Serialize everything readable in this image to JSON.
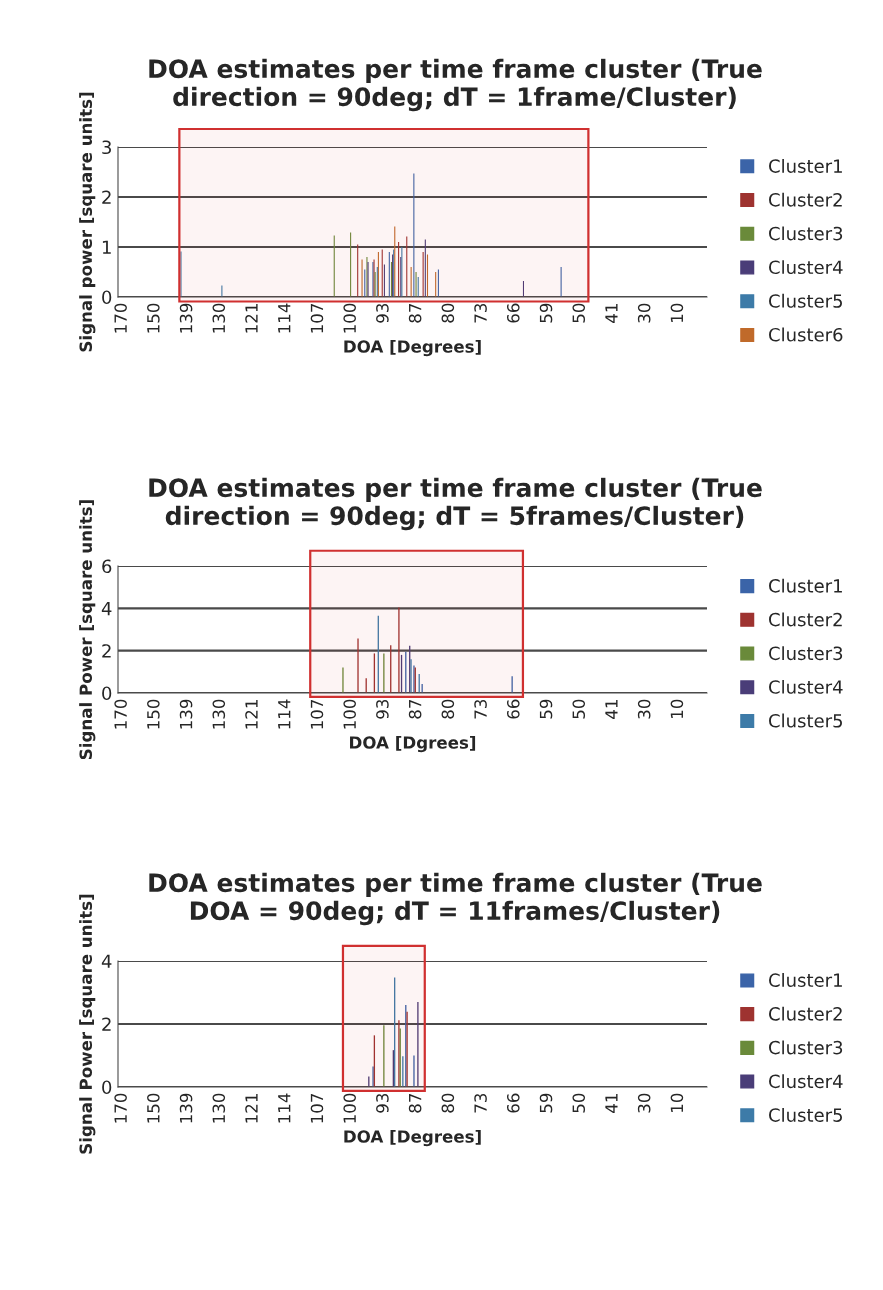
{
  "chart_data": [
    {
      "type": "bar",
      "title": "DOA estimates per time frame cluster (True direction = 90deg; dT = 1frame/Cluster)",
      "xlabel": "DOA [Degrees]",
      "ylabel": "Signal power [square units]",
      "categories": [
        "170",
        null,
        null,
        null,
        "150",
        null,
        null,
        null,
        "139",
        null,
        null,
        null,
        "130",
        null,
        null,
        null,
        "121",
        null,
        null,
        null,
        "114",
        null,
        null,
        null,
        "107",
        null,
        null,
        null,
        "100",
        null,
        null,
        null,
        "93",
        null,
        null,
        null,
        "87",
        null,
        null,
        null,
        "80",
        null,
        null,
        null,
        "73",
        null,
        null,
        null,
        "66",
        null,
        null,
        null,
        "59",
        null,
        null,
        null,
        "50",
        null,
        null,
        null,
        "41",
        null,
        null,
        null,
        "30",
        null,
        null,
        null,
        "10",
        null,
        null,
        null
      ],
      "ylim": [
        0,
        3
      ],
      "yticks": [
        0,
        1,
        2,
        3
      ],
      "grid": "y",
      "legend": "right",
      "bands": [
        {
          "axis": "x",
          "from": "139",
          "to": "50",
          "color": "#d03030"
        }
      ],
      "series": [
        {
          "name": "Cluster1",
          "color": "#3b64a8",
          "values": [
            null,
            null,
            null,
            null,
            null,
            null,
            null,
            null,
            null,
            null,
            null,
            null,
            null,
            null,
            null,
            null,
            null,
            null,
            null,
            null,
            null,
            null,
            null,
            null,
            null,
            null,
            null,
            null,
            null,
            null,
            0.55,
            0.7,
            null,
            0.9,
            null,
            null,
            2.47,
            null,
            null,
            0.55,
            null,
            null,
            null,
            null,
            null,
            null,
            null,
            null,
            null,
            null,
            null,
            null,
            null,
            null,
            0.6,
            null,
            null,
            null,
            null,
            null,
            null,
            null,
            null,
            null,
            null,
            null,
            null,
            null,
            null,
            null,
            null,
            null
          ]
        },
        {
          "name": "Cluster2",
          "color": "#9e3330",
          "values": [
            null,
            null,
            null,
            null,
            null,
            null,
            null,
            null,
            null,
            null,
            null,
            null,
            null,
            null,
            null,
            null,
            null,
            null,
            null,
            null,
            null,
            null,
            null,
            null,
            null,
            null,
            null,
            null,
            null,
            1.05,
            null,
            0.75,
            0.95,
            null,
            1.1,
            1.21,
            null,
            0.9,
            null,
            null,
            null,
            null,
            null,
            null,
            null,
            null,
            null,
            null,
            null,
            null,
            null,
            null,
            null,
            null,
            null,
            null,
            null,
            null,
            null,
            null,
            null,
            null,
            null,
            null,
            null,
            null,
            null,
            null,
            null,
            null,
            null,
            null
          ]
        },
        {
          "name": "Cluster3",
          "color": "#6a8a3a",
          "values": [
            null,
            null,
            null,
            null,
            null,
            null,
            null,
            null,
            null,
            null,
            null,
            null,
            null,
            null,
            null,
            null,
            null,
            null,
            null,
            null,
            null,
            null,
            null,
            null,
            null,
            null,
            1.23,
            null,
            1.29,
            null,
            0.8,
            0.5,
            null,
            0.7,
            null,
            null,
            0.5,
            null,
            null,
            null,
            null,
            null,
            null,
            null,
            null,
            null,
            null,
            null,
            null,
            null,
            null,
            null,
            null,
            null,
            null,
            null,
            null,
            null,
            null,
            null,
            null,
            null,
            null,
            null,
            null,
            null,
            null,
            null,
            null,
            null,
            null,
            null
          ]
        },
        {
          "name": "Cluster4",
          "color": "#4a3d78",
          "values": [
            null,
            null,
            null,
            null,
            null,
            null,
            null,
            null,
            null,
            null,
            null,
            null,
            null,
            null,
            null,
            null,
            null,
            null,
            null,
            null,
            null,
            null,
            null,
            null,
            null,
            null,
            null,
            null,
            null,
            null,
            0.7,
            null,
            0.65,
            0.85,
            0.8,
            null,
            null,
            1.15,
            null,
            null,
            null,
            null,
            null,
            null,
            null,
            null,
            null,
            null,
            null,
            0.32,
            null,
            null,
            null,
            null,
            null,
            null,
            null,
            null,
            null,
            null,
            null,
            null,
            null,
            null,
            null,
            null,
            null,
            null,
            null,
            null,
            null,
            null
          ]
        },
        {
          "name": "Cluster5",
          "color": "#3d7ba8",
          "values": [
            null,
            null,
            null,
            null,
            null,
            null,
            null,
            0.91,
            null,
            null,
            null,
            null,
            0.23,
            null,
            null,
            null,
            null,
            null,
            null,
            null,
            null,
            null,
            null,
            null,
            null,
            null,
            null,
            null,
            null,
            null,
            null,
            0.6,
            null,
            0.95,
            1.0,
            null,
            0.4,
            null,
            null,
            null,
            null,
            null,
            null,
            null,
            null,
            null,
            null,
            null,
            null,
            null,
            null,
            null,
            null,
            null,
            null,
            null,
            null,
            null,
            null,
            null,
            null,
            null,
            null,
            null,
            null,
            null,
            null,
            null,
            null,
            null,
            null,
            null
          ]
        },
        {
          "name": "Cluster6",
          "color": "#c06a2a",
          "values": [
            null,
            null,
            null,
            null,
            null,
            null,
            null,
            null,
            null,
            null,
            null,
            null,
            null,
            null,
            null,
            null,
            null,
            null,
            null,
            null,
            null,
            null,
            null,
            null,
            null,
            null,
            null,
            null,
            null,
            0.75,
            null,
            0.9,
            null,
            1.41,
            null,
            0.6,
            null,
            0.85,
            0.5,
            null,
            null,
            null,
            null,
            null,
            null,
            null,
            null,
            null,
            null,
            null,
            null,
            null,
            null,
            null,
            null,
            null,
            null,
            null,
            null,
            null,
            null,
            null,
            null,
            null,
            null,
            null,
            null,
            null,
            null,
            null,
            null,
            null
          ]
        }
      ]
    },
    {
      "type": "bar",
      "title": "DOA estimates per time frame cluster (True direction = 90deg; dT = 5frames/Cluster)",
      "xlabel": "DOA [Dgrees]",
      "ylabel": "Signal Power [square units]",
      "categories": [
        "170",
        null,
        null,
        null,
        "150",
        null,
        null,
        null,
        "139",
        null,
        null,
        null,
        "130",
        null,
        null,
        null,
        "121",
        null,
        null,
        null,
        "114",
        null,
        null,
        null,
        "107",
        null,
        null,
        null,
        "100",
        null,
        null,
        null,
        "93",
        null,
        null,
        null,
        "87",
        null,
        null,
        null,
        "80",
        null,
        null,
        null,
        "73",
        null,
        null,
        null,
        "66",
        null,
        null,
        null,
        "59",
        null,
        null,
        null,
        "50",
        null,
        null,
        null,
        "41",
        null,
        null,
        null,
        "30",
        null,
        null,
        null,
        "10",
        null,
        null,
        null
      ],
      "ylim": [
        0,
        6
      ],
      "yticks": [
        0,
        2,
        4,
        6
      ],
      "grid": "y",
      "legend": "right",
      "bands": [
        {
          "axis": "x",
          "from": "107",
          "to": "66",
          "color": "#d03030"
        }
      ],
      "series": [
        {
          "name": "Cluster1",
          "color": "#3b64a8",
          "values": [
            null,
            null,
            null,
            null,
            null,
            null,
            null,
            null,
            null,
            null,
            null,
            null,
            null,
            null,
            null,
            null,
            null,
            null,
            null,
            null,
            null,
            null,
            null,
            null,
            null,
            null,
            null,
            null,
            null,
            null,
            null,
            null,
            null,
            null,
            null,
            1.95,
            1.3,
            0.42,
            null,
            null,
            null,
            null,
            null,
            null,
            null,
            null,
            null,
            null,
            0.79,
            null,
            null,
            null,
            null,
            null,
            null,
            null,
            null,
            null,
            null,
            null,
            null,
            null,
            null,
            null,
            null,
            null,
            null,
            null,
            null,
            null,
            null,
            null
          ]
        },
        {
          "name": "Cluster2",
          "color": "#9e3330",
          "values": [
            null,
            null,
            null,
            null,
            null,
            null,
            null,
            null,
            null,
            null,
            null,
            null,
            null,
            null,
            null,
            null,
            null,
            null,
            null,
            null,
            null,
            null,
            null,
            null,
            null,
            null,
            null,
            null,
            null,
            2.58,
            0.7,
            1.87,
            null,
            2.26,
            4.04,
            null,
            1.2,
            null,
            null,
            null,
            null,
            null,
            null,
            null,
            null,
            null,
            null,
            null,
            null,
            null,
            null,
            null,
            null,
            null,
            null,
            null,
            null,
            null,
            null,
            null,
            null,
            null,
            null,
            null,
            null,
            null,
            null,
            null,
            null,
            null,
            null,
            null
          ]
        },
        {
          "name": "Cluster3",
          "color": "#6a8a3a",
          "values": [
            null,
            null,
            null,
            null,
            null,
            null,
            null,
            null,
            null,
            null,
            null,
            null,
            null,
            null,
            null,
            null,
            null,
            null,
            null,
            null,
            null,
            null,
            null,
            null,
            null,
            null,
            null,
            1.2,
            null,
            null,
            null,
            null,
            1.87,
            null,
            null,
            null,
            null,
            null,
            null,
            null,
            null,
            null,
            null,
            null,
            null,
            null,
            null,
            null,
            null,
            null,
            null,
            null,
            null,
            null,
            null,
            null,
            null,
            null,
            null,
            null,
            null,
            null,
            null,
            null,
            null,
            null,
            null,
            null,
            null,
            null,
            null,
            null
          ]
        },
        {
          "name": "Cluster4",
          "color": "#4a3d78",
          "values": [
            null,
            null,
            null,
            null,
            null,
            null,
            null,
            null,
            null,
            null,
            null,
            null,
            null,
            null,
            null,
            null,
            null,
            null,
            null,
            null,
            null,
            null,
            null,
            null,
            null,
            null,
            null,
            null,
            null,
            null,
            null,
            null,
            null,
            null,
            1.8,
            2.23,
            null,
            null,
            null,
            null,
            null,
            null,
            null,
            null,
            null,
            null,
            null,
            null,
            null,
            null,
            null,
            null,
            null,
            null,
            null,
            null,
            null,
            null,
            null,
            null,
            null,
            null,
            null,
            null,
            null,
            null,
            null,
            null,
            null,
            null,
            null,
            null
          ]
        },
        {
          "name": "Cluster5",
          "color": "#3d7ba8",
          "values": [
            null,
            null,
            null,
            null,
            null,
            null,
            null,
            null,
            null,
            null,
            null,
            null,
            null,
            null,
            null,
            null,
            null,
            null,
            null,
            null,
            null,
            null,
            null,
            null,
            null,
            null,
            null,
            null,
            null,
            null,
            null,
            3.65,
            null,
            null,
            null,
            1.6,
            0.9,
            null,
            null,
            null,
            null,
            null,
            null,
            null,
            null,
            null,
            null,
            null,
            null,
            null,
            null,
            null,
            null,
            null,
            null,
            null,
            null,
            null,
            null,
            null,
            null,
            null,
            null,
            null,
            null,
            null,
            null,
            null,
            null,
            null,
            null,
            null
          ]
        }
      ]
    },
    {
      "type": "bar",
      "title": "DOA estimates per time frame cluster (True DOA = 90deg; dT = 11frames/Cluster)",
      "xlabel": "DOA [Degrees]",
      "ylabel": "Signal Power [square units]",
      "categories": [
        "170",
        null,
        null,
        null,
        "150",
        null,
        null,
        null,
        "139",
        null,
        null,
        null,
        "130",
        null,
        null,
        null,
        "121",
        null,
        null,
        null,
        "114",
        null,
        null,
        null,
        "107",
        null,
        null,
        null,
        "100",
        null,
        null,
        null,
        "93",
        null,
        null,
        null,
        "87",
        null,
        null,
        null,
        "80",
        null,
        null,
        null,
        "73",
        null,
        null,
        null,
        "66",
        null,
        null,
        null,
        "59",
        null,
        null,
        null,
        "50",
        null,
        null,
        null,
        "41",
        null,
        null,
        null,
        "30",
        null,
        null,
        null,
        "10",
        null,
        null,
        null
      ],
      "ylim": [
        0,
        4
      ],
      "yticks": [
        0,
        2,
        4
      ],
      "grid": "y",
      "legend": "right",
      "bands": [
        {
          "axis": "x",
          "from": "100",
          "to": "87",
          "color": "#d03030"
        }
      ],
      "series": [
        {
          "name": "Cluster1",
          "color": "#3b64a8",
          "values": [
            null,
            null,
            null,
            null,
            null,
            null,
            null,
            null,
            null,
            null,
            null,
            null,
            null,
            null,
            null,
            null,
            null,
            null,
            null,
            null,
            null,
            null,
            null,
            null,
            null,
            null,
            null,
            null,
            null,
            null,
            null,
            0.65,
            null,
            null,
            null,
            2.6,
            1.0,
            null,
            null,
            null,
            null,
            null,
            null,
            null,
            null,
            null,
            null,
            null,
            null,
            null,
            null,
            null,
            null,
            null,
            null,
            null,
            null,
            null,
            null,
            null,
            null,
            null,
            null,
            null,
            null,
            null,
            null,
            null,
            null,
            null,
            null,
            null
          ]
        },
        {
          "name": "Cluster2",
          "color": "#9e3330",
          "values": [
            null,
            null,
            null,
            null,
            null,
            null,
            null,
            null,
            null,
            null,
            null,
            null,
            null,
            null,
            null,
            null,
            null,
            null,
            null,
            null,
            null,
            null,
            null,
            null,
            null,
            null,
            null,
            null,
            null,
            null,
            null,
            1.64,
            null,
            null,
            2.12,
            2.39,
            null,
            null,
            null,
            null,
            null,
            null,
            null,
            null,
            null,
            null,
            null,
            null,
            null,
            null,
            null,
            null,
            null,
            null,
            null,
            null,
            null,
            null,
            null,
            null,
            null,
            null,
            null,
            null,
            null,
            null,
            null,
            null,
            null,
            null,
            null,
            null
          ]
        },
        {
          "name": "Cluster3",
          "color": "#6a8a3a",
          "values": [
            null,
            null,
            null,
            null,
            null,
            null,
            null,
            null,
            null,
            null,
            null,
            null,
            null,
            null,
            null,
            null,
            null,
            null,
            null,
            null,
            null,
            null,
            null,
            null,
            null,
            null,
            null,
            null,
            null,
            null,
            null,
            null,
            1.96,
            null,
            1.86,
            null,
            null,
            null,
            null,
            null,
            null,
            null,
            null,
            null,
            null,
            null,
            null,
            null,
            null,
            null,
            null,
            null,
            null,
            null,
            null,
            null,
            null,
            null,
            null,
            null,
            null,
            null,
            null,
            null,
            null,
            null,
            null,
            null,
            null,
            null,
            null,
            null
          ]
        },
        {
          "name": "Cluster4",
          "color": "#4a3d78",
          "values": [
            null,
            null,
            null,
            null,
            null,
            null,
            null,
            null,
            null,
            null,
            null,
            null,
            null,
            null,
            null,
            null,
            null,
            null,
            null,
            null,
            null,
            null,
            null,
            null,
            null,
            null,
            null,
            null,
            null,
            null,
            0.33,
            null,
            null,
            1.17,
            null,
            null,
            2.7,
            null,
            null,
            null,
            null,
            null,
            null,
            null,
            null,
            null,
            null,
            null,
            null,
            null,
            null,
            null,
            null,
            null,
            null,
            null,
            null,
            null,
            null,
            null,
            null,
            null,
            null,
            null,
            null,
            null,
            null,
            null,
            null,
            null,
            null,
            null
          ]
        },
        {
          "name": "Cluster5",
          "color": "#3d7ba8",
          "values": [
            null,
            null,
            null,
            null,
            null,
            null,
            null,
            null,
            null,
            null,
            null,
            null,
            null,
            null,
            null,
            null,
            null,
            null,
            null,
            null,
            null,
            null,
            null,
            null,
            null,
            null,
            null,
            null,
            null,
            null,
            null,
            null,
            null,
            3.48,
            0.98,
            null,
            null,
            null,
            null,
            null,
            null,
            null,
            null,
            null,
            null,
            null,
            null,
            null,
            null,
            null,
            null,
            null,
            null,
            null,
            null,
            null,
            null,
            null,
            null,
            null,
            null,
            null,
            null,
            null,
            null,
            null,
            null,
            null,
            null,
            null,
            null,
            null
          ]
        }
      ]
    }
  ]
}
